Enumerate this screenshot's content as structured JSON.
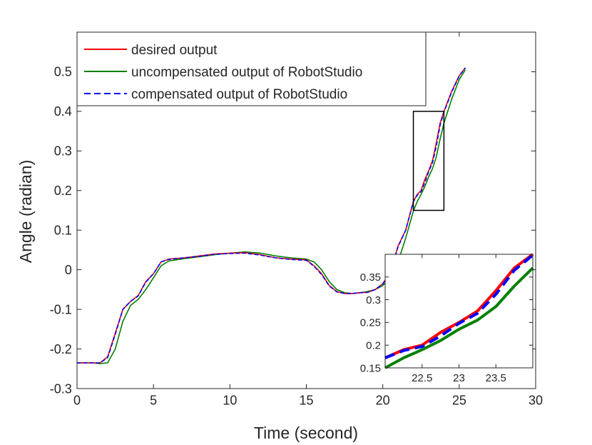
{
  "chart_data": {
    "type": "line",
    "title": "",
    "xlabel": "Time (second)",
    "ylabel": "Angle (radian)",
    "xlim": [
      0,
      30
    ],
    "ylim": [
      -0.3,
      0.6
    ],
    "xticks": [
      "0",
      "5",
      "10",
      "15",
      "20",
      "25",
      "30"
    ],
    "xtick_values": [
      0,
      5,
      10,
      15,
      20,
      25,
      30
    ],
    "yticks": [
      "-0.3",
      "-0.2",
      "-0.1",
      "0",
      "0.1",
      "0.2",
      "0.3",
      "0.4",
      "0.5"
    ],
    "ytick_values": [
      -0.3,
      -0.2,
      -0.1,
      0,
      0.1,
      0.2,
      0.3,
      0.4,
      0.5
    ],
    "grid": false,
    "legend_position": "top-left",
    "x": [
      0,
      1,
      1.5,
      2,
      2.5,
      3,
      3.5,
      4,
      4.5,
      5,
      5.5,
      6,
      7,
      8,
      9,
      10,
      11,
      12,
      13,
      14,
      15,
      15.5,
      16,
      16.5,
      17,
      17.5,
      18,
      18.5,
      19,
      19.5,
      20,
      20.5,
      21,
      21.5,
      22,
      22.25,
      22.5,
      22.75,
      23,
      23.25,
      23.5,
      23.75,
      24,
      24.5,
      25,
      25.4
    ],
    "series": [
      {
        "name": "desired output",
        "color": "#ff0000",
        "style": "solid",
        "values": [
          -0.235,
          -0.235,
          -0.235,
          -0.22,
          -0.16,
          -0.1,
          -0.08,
          -0.065,
          -0.03,
          -0.01,
          0.02,
          0.027,
          0.03,
          0.035,
          0.04,
          0.042,
          0.043,
          0.038,
          0.03,
          0.027,
          0.025,
          0.01,
          -0.01,
          -0.04,
          -0.055,
          -0.06,
          -0.06,
          -0.058,
          -0.057,
          -0.05,
          -0.035,
          -0.005,
          0.06,
          0.1,
          0.172,
          0.19,
          0.2,
          0.228,
          0.25,
          0.275,
          0.32,
          0.37,
          0.4,
          0.45,
          0.49,
          0.51
        ]
      },
      {
        "name": "uncompensated output of RobotStudio",
        "color": "#008000",
        "style": "solid",
        "values": [
          -0.235,
          -0.235,
          -0.237,
          -0.235,
          -0.2,
          -0.13,
          -0.09,
          -0.075,
          -0.05,
          -0.02,
          0.01,
          0.022,
          0.028,
          0.033,
          0.038,
          0.042,
          0.045,
          0.042,
          0.035,
          0.03,
          0.027,
          0.02,
          0.0,
          -0.03,
          -0.05,
          -0.058,
          -0.06,
          -0.058,
          -0.055,
          -0.05,
          -0.04,
          -0.02,
          0.02,
          0.08,
          0.148,
          0.172,
          0.19,
          0.21,
          0.235,
          0.255,
          0.285,
          0.33,
          0.37,
          0.43,
          0.48,
          0.505
        ]
      },
      {
        "name": "compensated output of RobotStudio",
        "color": "#0000ff",
        "style": "dashed",
        "values": [
          -0.235,
          -0.235,
          -0.235,
          -0.222,
          -0.163,
          -0.1,
          -0.08,
          -0.066,
          -0.031,
          -0.01,
          0.02,
          0.026,
          0.03,
          0.034,
          0.039,
          0.041,
          0.042,
          0.037,
          0.03,
          0.026,
          0.024,
          0.009,
          -0.012,
          -0.041,
          -0.056,
          -0.06,
          -0.06,
          -0.058,
          -0.057,
          -0.05,
          -0.036,
          -0.006,
          0.058,
          0.1,
          0.172,
          0.188,
          0.197,
          0.22,
          0.248,
          0.27,
          0.312,
          0.365,
          0.398,
          0.448,
          0.489,
          0.51
        ]
      }
    ],
    "zoom_region": {
      "xlim": [
        22,
        24
      ],
      "ylim": [
        0.15,
        0.4
      ]
    },
    "inset": {
      "xlim": [
        22,
        24
      ],
      "ylim": [
        0.15,
        0.4
      ],
      "xticks": [
        "22.5",
        "23",
        "23.5"
      ],
      "xtick_values": [
        22.5,
        23,
        23.5
      ],
      "yticks": [
        "0.15",
        "0.2",
        "0.25",
        "0.3",
        "0.35"
      ],
      "ytick_values": [
        0.15,
        0.2,
        0.25,
        0.3,
        0.35
      ]
    }
  }
}
